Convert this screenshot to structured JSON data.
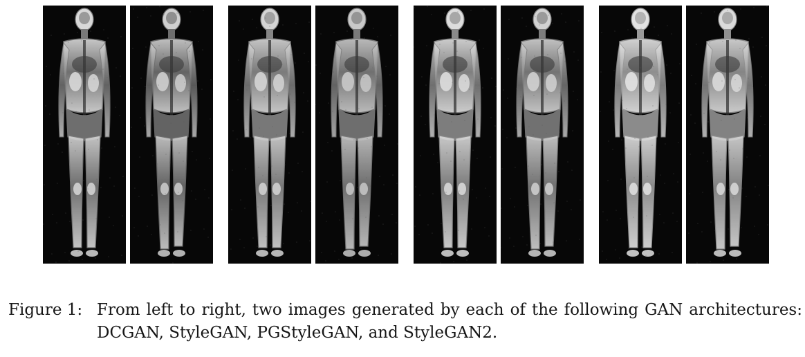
{
  "figure": {
    "panels": [
      {
        "architecture": "DCGAN",
        "sample": 1,
        "tone": "#d8d8d8",
        "texture": "#7a7a7a"
      },
      {
        "architecture": "DCGAN",
        "sample": 2,
        "tone": "#cfcfcf",
        "texture": "#6d6d6d"
      },
      {
        "architecture": "StyleGAN",
        "sample": 1,
        "tone": "#d5d5d5",
        "texture": "#858585"
      },
      {
        "architecture": "StyleGAN",
        "sample": 2,
        "tone": "#c9c9c9",
        "texture": "#7a7a7a"
      },
      {
        "architecture": "PGStyleGAN",
        "sample": 1,
        "tone": "#dddddd",
        "texture": "#8a8a8a"
      },
      {
        "architecture": "PGStyleGAN",
        "sample": 2,
        "tone": "#d2d2d2",
        "texture": "#7d7d7d"
      },
      {
        "architecture": "StyleGAN2",
        "sample": 1,
        "tone": "#e3e3e3",
        "texture": "#9a9a9a"
      },
      {
        "architecture": "StyleGAN2",
        "sample": 2,
        "tone": "#dadada",
        "texture": "#909090"
      }
    ]
  },
  "caption": {
    "label": "Figure 1:",
    "text": "From left to right, two images generated by each of the following GAN architectures: DCGAN, StyleGAN, PGStyleGAN, and StyleGAN2."
  }
}
